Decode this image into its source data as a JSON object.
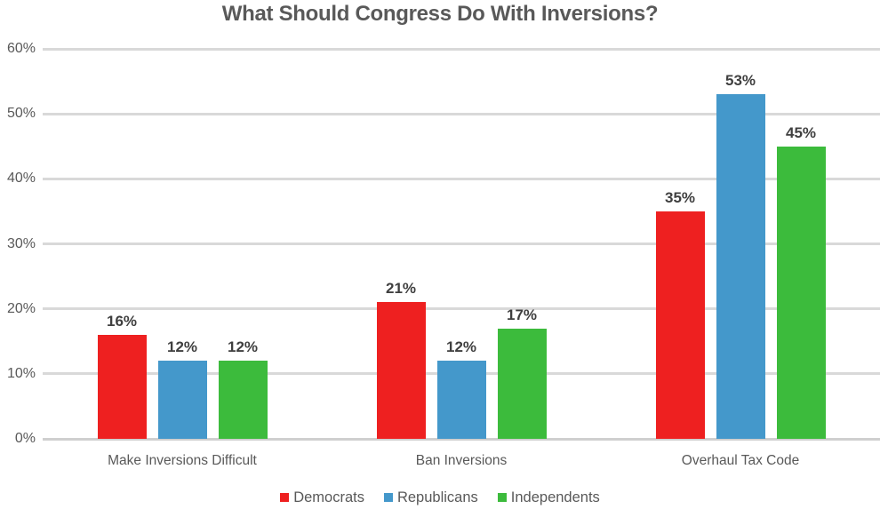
{
  "chart_data": {
    "type": "bar",
    "title": "What Should Congress Do With Inversions?",
    "categories": [
      "Make Inversions Difficult",
      "Ban Inversions",
      "Overhaul Tax Code"
    ],
    "series": [
      {
        "name": "Democrats",
        "color": "#ee2020",
        "values": [
          16,
          21,
          35
        ]
      },
      {
        "name": "Republicans",
        "color": "#4498cb",
        "values": [
          12,
          12,
          53
        ]
      },
      {
        "name": "Independents",
        "color": "#3cbb3c",
        "values": [
          12,
          17,
          45
        ]
      }
    ],
    "data_labels": [
      "16%",
      "21%",
      "35%",
      "12%",
      "12%",
      "53%",
      "12%",
      "17%",
      "45%"
    ],
    "value_suffix": "%",
    "ylim": [
      0,
      60
    ],
    "ytick_step": 10,
    "ytick_labels": [
      "0%",
      "10%",
      "20%",
      "30%",
      "40%",
      "50%",
      "60%"
    ],
    "grid": true,
    "legend_position": "bottom",
    "legend_entries": [
      "Democrats",
      "Republicans",
      "Independents"
    ]
  },
  "colors": {
    "background": "#ffffff",
    "title_text": "#595959",
    "axis_text": "#595959",
    "data_label_text": "#3f3f3f",
    "gridline": "#d9d9d9",
    "axis_line": "#cfcfcf"
  }
}
